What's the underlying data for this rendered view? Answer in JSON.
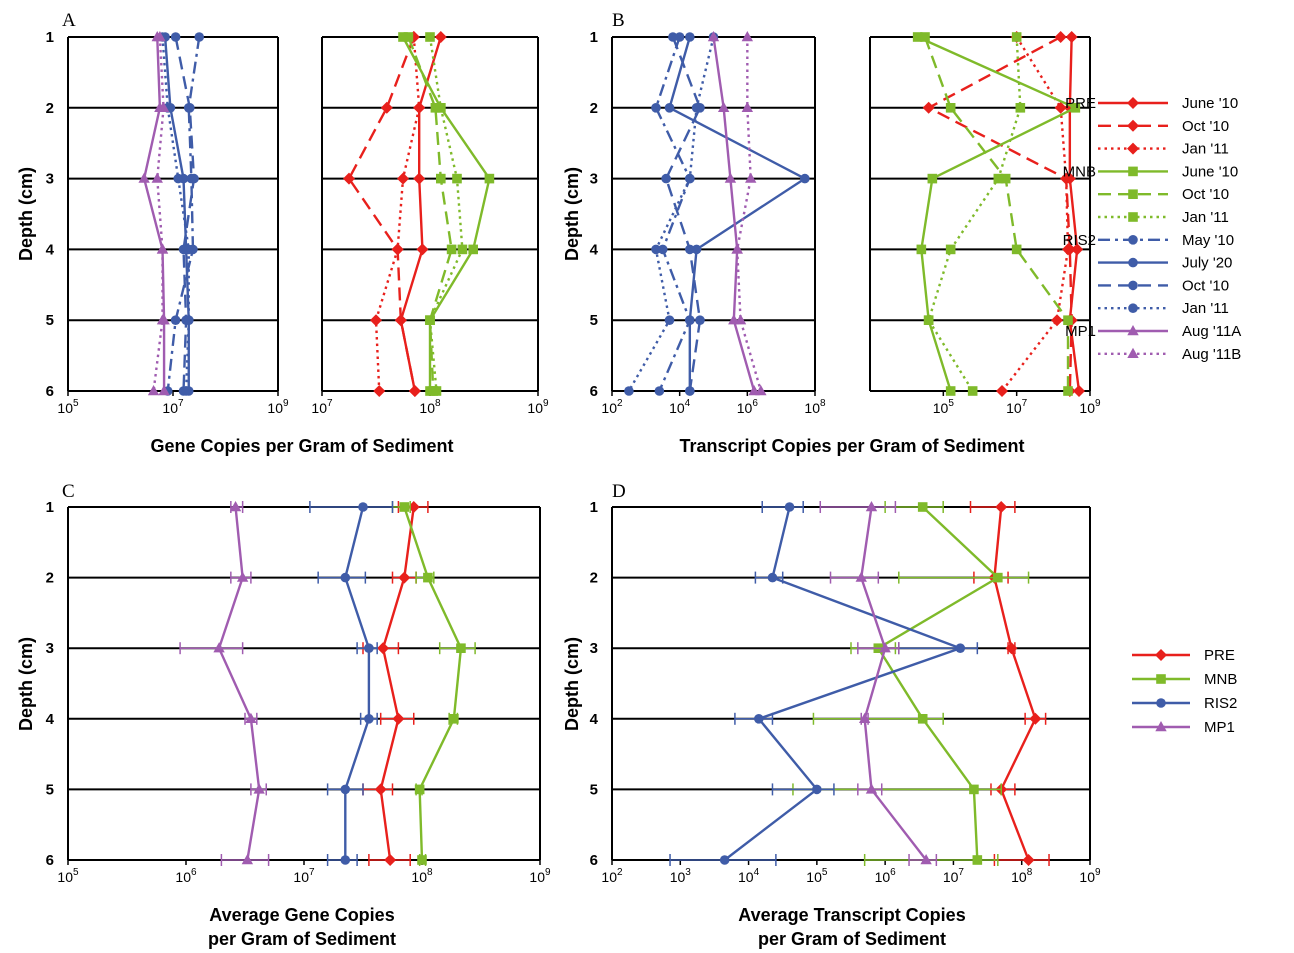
{
  "colors": {
    "PRE": "#e8201c",
    "MNB": "#7fba2a",
    "RIS2": "#3f5ca8",
    "MP1": "#a05cb0"
  },
  "labels": {
    "panel_a": "A",
    "panel_b": "B",
    "panel_c": "C",
    "panel_d": "D",
    "depth_axis": "Depth (cm)",
    "a_xlabel": "Gene Copies per Gram of Sediment",
    "b_xlabel": "Transcript Copies per Gram of Sediment",
    "c_xlabel_line1": "Average Gene Copies",
    "c_xlabel_line2": "per Gram of Sediment",
    "d_xlabel_line1": "Average Transcript Copies",
    "d_xlabel_line2": "per Gram of Sediment"
  },
  "legend_top": [
    {
      "group": "PRE",
      "label": "June '10",
      "site": "PRE",
      "dash": "solid",
      "marker": "diamond"
    },
    {
      "group": "",
      "label": "Oct '10",
      "site": "PRE",
      "dash": "dash",
      "marker": "diamond"
    },
    {
      "group": "",
      "label": "Jan '11",
      "site": "PRE",
      "dash": "dot",
      "marker": "diamond"
    },
    {
      "group": "MNB",
      "label": "June '10",
      "site": "MNB",
      "dash": "solid",
      "marker": "square"
    },
    {
      "group": "",
      "label": "Oct '10",
      "site": "MNB",
      "dash": "dash",
      "marker": "square"
    },
    {
      "group": "",
      "label": "Jan '11",
      "site": "MNB",
      "dash": "dot",
      "marker": "square"
    },
    {
      "group": "RIS2",
      "label": "May '10",
      "site": "RIS2",
      "dash": "dashdot",
      "marker": "circle"
    },
    {
      "group": "",
      "label": "July '20",
      "site": "RIS2",
      "dash": "solid",
      "marker": "circle"
    },
    {
      "group": "",
      "label": "Oct '10",
      "site": "RIS2",
      "dash": "dash",
      "marker": "circle"
    },
    {
      "group": "",
      "label": "Jan '11",
      "site": "RIS2",
      "dash": "dot",
      "marker": "circle"
    },
    {
      "group": "MP1",
      "label": "Aug '11A",
      "site": "MP1",
      "dash": "solid",
      "marker": "triangle"
    },
    {
      "group": "",
      "label": "Aug '11B",
      "site": "MP1",
      "dash": "dot",
      "marker": "triangle"
    }
  ],
  "legend_bottom": [
    {
      "label": "PRE",
      "site": "PRE",
      "marker": "diamond"
    },
    {
      "label": "MNB",
      "site": "MNB",
      "marker": "square"
    },
    {
      "label": "RIS2",
      "site": "RIS2",
      "marker": "circle"
    },
    {
      "label": "MP1",
      "site": "MP1",
      "marker": "triangle"
    }
  ],
  "chart_data": [
    {
      "panel": "A-left",
      "type": "line",
      "xlabel": "Gene Copies per Gram of Sediment",
      "ylabel": "Depth (cm)",
      "xscale": "log",
      "xlim_exp": [
        5,
        9
      ],
      "xticks_exp": [
        5,
        7,
        9
      ],
      "y": [
        1,
        2,
        3,
        4,
        5,
        6
      ],
      "series": [
        {
          "site": "RIS2",
          "dash": "dashdot",
          "marker": "circle",
          "values_log10": [
            7.5,
            7.3,
            7.35,
            7.38,
            7.05,
            6.9
          ]
        },
        {
          "site": "RIS2",
          "dash": "solid",
          "marker": "circle",
          "values_log10": [
            6.85,
            6.95,
            7.2,
            7.25,
            7.3,
            7.3
          ]
        },
        {
          "site": "RIS2",
          "dash": "dash",
          "marker": "circle",
          "values_log10": [
            7.05,
            7.32,
            7.4,
            7.2,
            7.25,
            7.2
          ]
        },
        {
          "site": "RIS2",
          "dash": "dot",
          "marker": "circle",
          "values_log10": [
            6.8,
            6.9,
            7.1,
            7.3,
            7.3,
            7.25
          ]
        },
        {
          "site": "MP1",
          "dash": "solid",
          "marker": "triangle",
          "values_log10": [
            6.7,
            6.75,
            6.45,
            6.8,
            6.83,
            6.83
          ]
        },
        {
          "site": "MP1",
          "dash": "dot",
          "marker": "triangle",
          "values_log10": [
            6.75,
            6.82,
            6.7,
            6.8,
            6.8,
            6.63
          ]
        }
      ]
    },
    {
      "panel": "A-right",
      "type": "line",
      "xscale": "log",
      "xlim_exp": [
        7,
        9
      ],
      "xticks_exp": [
        7,
        8,
        9
      ],
      "y": [
        1,
        2,
        3,
        4,
        5,
        6
      ],
      "series": [
        {
          "site": "PRE",
          "dash": "solid",
          "marker": "diamond",
          "values_log10": [
            8.1,
            7.9,
            7.9,
            7.93,
            7.73,
            7.86
          ]
        },
        {
          "site": "PRE",
          "dash": "dash",
          "marker": "diamond",
          "values_log10": [
            7.85,
            7.6,
            7.25,
            7.7,
            7.73,
            7.86
          ]
        },
        {
          "site": "PRE",
          "dash": "dot",
          "marker": "diamond",
          "values_log10": [
            7.85,
            7.9,
            7.75,
            7.7,
            7.5,
            7.53
          ]
        },
        {
          "site": "MNB",
          "dash": "solid",
          "marker": "square",
          "values_log10": [
            7.75,
            8.1,
            8.55,
            8.4,
            8.0,
            8.0
          ]
        },
        {
          "site": "MNB",
          "dash": "dash",
          "marker": "square",
          "values_log10": [
            7.8,
            8.05,
            8.1,
            8.2,
            8.0,
            8.03
          ]
        },
        {
          "site": "MNB",
          "dash": "dot",
          "marker": "square",
          "values_log10": [
            8.0,
            8.1,
            8.25,
            8.3,
            8.0,
            8.06
          ]
        }
      ]
    },
    {
      "panel": "B-left",
      "type": "line",
      "xlabel": "Transcript Copies per Gram of Sediment",
      "ylabel": "Depth (cm)",
      "xscale": "log",
      "xlim_exp": [
        2,
        8
      ],
      "xticks_exp": [
        2,
        4,
        6,
        8
      ],
      "y": [
        1,
        2,
        3,
        4,
        5,
        6
      ],
      "series": [
        {
          "site": "RIS2",
          "dash": "dashdot",
          "marker": "circle",
          "values_log10": [
            4.0,
            3.3,
            4.3,
            3.5,
            4.3,
            3.4
          ]
        },
        {
          "site": "RIS2",
          "dash": "solid",
          "marker": "circle",
          "values_log10": [
            4.3,
            3.7,
            7.7,
            4.5,
            4.3,
            4.3
          ]
        },
        {
          "site": "RIS2",
          "dash": "dash",
          "marker": "circle",
          "values_log10": [
            3.8,
            4.6,
            3.6,
            4.3,
            4.6,
            4.3
          ]
        },
        {
          "site": "RIS2",
          "dash": "dot",
          "marker": "circle",
          "values_log10": [
            5.0,
            4.5,
            4.3,
            3.3,
            3.7,
            2.5
          ]
        },
        {
          "site": "MP1",
          "dash": "solid",
          "marker": "triangle",
          "values_log10": [
            5.0,
            5.3,
            5.5,
            5.7,
            5.6,
            6.2
          ]
        },
        {
          "site": "MP1",
          "dash": "dot",
          "marker": "triangle",
          "values_log10": [
            6.0,
            6.0,
            6.1,
            5.7,
            5.8,
            6.4
          ]
        }
      ]
    },
    {
      "panel": "B-right",
      "type": "line",
      "xscale": "log",
      "xlim_exp": [
        3,
        9
      ],
      "xticks_exp": [
        5,
        7,
        9
      ],
      "y": [
        1,
        2,
        3,
        4,
        5,
        6
      ],
      "series": [
        {
          "site": "PRE",
          "dash": "solid",
          "marker": "diamond",
          "values_log10": [
            8.5,
            8.45,
            8.45,
            8.65,
            8.45,
            8.7
          ]
        },
        {
          "site": "PRE",
          "dash": "dash",
          "marker": "diamond",
          "values_log10": [
            8.2,
            4.6,
            8.35,
            8.45,
            8.5,
            8.45
          ]
        },
        {
          "site": "PRE",
          "dash": "dot",
          "marker": "diamond",
          "values_log10": [
            7.0,
            8.2,
            8.35,
            8.4,
            8.1,
            6.6
          ]
        },
        {
          "site": "MNB",
          "dash": "solid",
          "marker": "square",
          "values_log10": [
            4.3,
            8.6,
            4.7,
            4.4,
            4.6,
            5.2
          ]
        },
        {
          "site": "MNB",
          "dash": "dash",
          "marker": "square",
          "values_log10": [
            4.5,
            5.2,
            6.7,
            7.0,
            8.4,
            8.4
          ]
        },
        {
          "site": "MNB",
          "dash": "dot",
          "marker": "square",
          "values_log10": [
            7.0,
            7.1,
            6.5,
            5.2,
            4.6,
            5.8
          ]
        }
      ]
    },
    {
      "panel": "C",
      "type": "line",
      "xlabel": "Average Gene Copies per Gram of Sediment",
      "ylabel": "Depth (cm)",
      "xscale": "log",
      "xlim_exp": [
        5,
        9
      ],
      "xticks_exp": [
        5,
        6,
        7,
        8,
        9
      ],
      "y": [
        1,
        2,
        3,
        4,
        5,
        6
      ],
      "series": [
        {
          "name": "PRE",
          "site": "PRE",
          "marker": "diamond",
          "values_log10": [
            7.93,
            7.85,
            7.67,
            7.8,
            7.65,
            7.73
          ],
          "err_low_log10": [
            7.8,
            7.75,
            7.5,
            7.65,
            7.5,
            7.55
          ],
          "err_high_log10": [
            8.05,
            7.95,
            7.8,
            7.93,
            7.75,
            7.9
          ]
        },
        {
          "name": "MNB",
          "site": "MNB",
          "marker": "square",
          "values_log10": [
            7.85,
            8.05,
            8.33,
            8.27,
            7.98,
            8.0
          ],
          "err_low_log10": [
            7.75,
            7.95,
            8.15,
            8.23,
            7.95,
            7.98
          ],
          "err_high_log10": [
            7.9,
            8.1,
            8.45,
            8.3,
            8.0,
            8.03
          ]
        },
        {
          "name": "RIS2",
          "site": "RIS2",
          "marker": "circle",
          "values_log10": [
            7.5,
            7.35,
            7.55,
            7.55,
            7.35,
            7.35
          ],
          "err_low_log10": [
            7.05,
            7.12,
            7.45,
            7.48,
            7.2,
            7.2
          ],
          "err_high_log10": [
            7.75,
            7.52,
            7.62,
            7.62,
            7.5,
            7.45
          ]
        },
        {
          "name": "MP1",
          "site": "MP1",
          "marker": "triangle",
          "values_log10": [
            6.42,
            6.48,
            6.28,
            6.55,
            6.62,
            6.52
          ],
          "err_low_log10": [
            6.38,
            6.38,
            5.95,
            6.5,
            6.55,
            6.3
          ],
          "err_high_log10": [
            6.48,
            6.55,
            6.48,
            6.6,
            6.68,
            6.7
          ]
        }
      ]
    },
    {
      "panel": "D",
      "type": "line",
      "xlabel": "Average Transcript Copies per Gram of Sediment",
      "ylabel": "Depth (cm)",
      "xscale": "log",
      "xlim_exp": [
        2,
        9
      ],
      "xticks_exp": [
        2,
        3,
        4,
        5,
        6,
        7,
        8,
        9
      ],
      "y": [
        1,
        2,
        3,
        4,
        5,
        6
      ],
      "series": [
        {
          "name": "PRE",
          "site": "PRE",
          "marker": "diamond",
          "values_log10": [
            7.7,
            7.6,
            7.85,
            8.2,
            7.7,
            8.1
          ],
          "err_low_log10": [
            7.25,
            7.3,
            7.8,
            8.05,
            7.55,
            7.6
          ],
          "err_high_log10": [
            7.9,
            7.8,
            7.9,
            8.35,
            7.9,
            8.4
          ]
        },
        {
          "name": "MNB",
          "site": "MNB",
          "marker": "square",
          "values_log10": [
            6.55,
            7.65,
            5.9,
            6.55,
            7.3,
            7.35
          ],
          "err_low_log10": [
            6.0,
            6.2,
            5.5,
            4.95,
            4.65,
            5.7
          ],
          "err_high_log10": [
            6.85,
            8.1,
            6.15,
            6.85,
            7.7,
            7.65
          ]
        },
        {
          "name": "RIS2",
          "site": "RIS2",
          "marker": "circle",
          "values_log10": [
            4.6,
            4.35,
            7.1,
            4.15,
            5.0,
            3.65
          ],
          "err_low_log10": [
            4.2,
            4.1,
            6.2,
            3.8,
            4.35,
            2.85
          ],
          "err_high_log10": [
            4.8,
            4.5,
            7.35,
            4.35,
            5.25,
            4.4
          ]
        },
        {
          "name": "MP1",
          "site": "MP1",
          "marker": "triangle",
          "values_log10": [
            5.8,
            5.65,
            6.0,
            5.7,
            5.8,
            6.6
          ],
          "err_low_log10": [
            5.05,
            5.2,
            5.6,
            5.65,
            5.6,
            6.35
          ],
          "err_high_log10": [
            6.15,
            5.9,
            6.2,
            5.75,
            5.95,
            6.75
          ]
        }
      ]
    }
  ]
}
